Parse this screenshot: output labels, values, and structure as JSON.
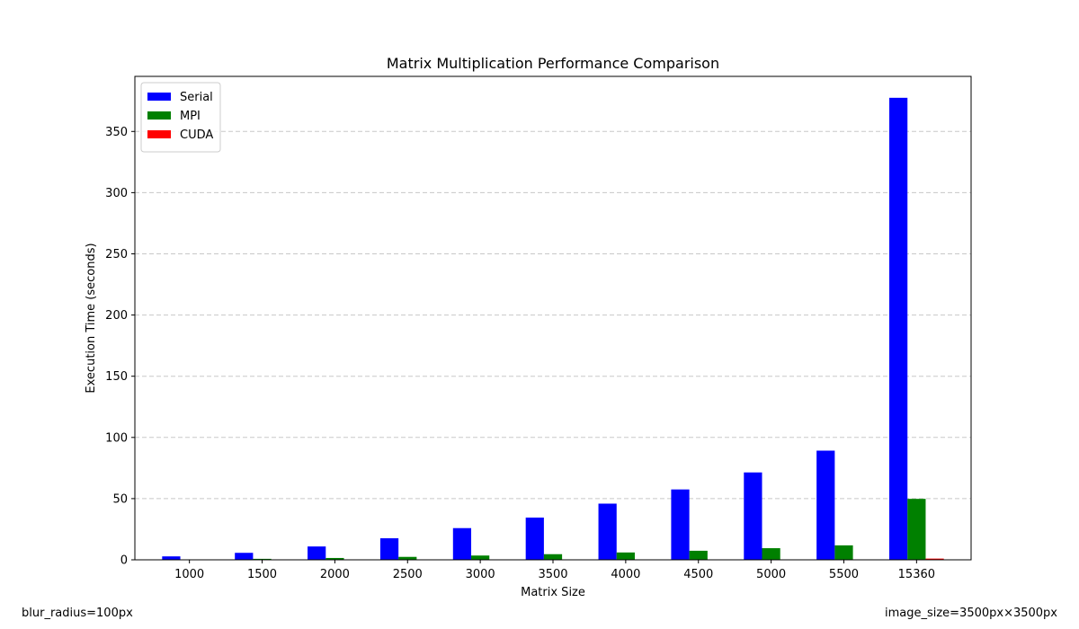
{
  "chart_data": {
    "type": "bar",
    "title": "Matrix Multiplication Performance Comparison",
    "xlabel": "Matrix Size",
    "ylabel": "Execution Time (seconds)",
    "categories": [
      "1000",
      "1500",
      "2000",
      "2500",
      "3000",
      "3500",
      "4000",
      "4500",
      "5000",
      "5500",
      "15360"
    ],
    "ylim": [
      0,
      395
    ],
    "yticks": [
      0,
      50,
      100,
      150,
      200,
      250,
      300,
      350
    ],
    "grid": "horizontal dashed",
    "legend_position": "top-left",
    "series": [
      {
        "name": "Serial",
        "color": "#0000ff",
        "values": [
          2.8,
          5.7,
          10.9,
          17.6,
          25.9,
          34.5,
          45.9,
          57.5,
          71.4,
          89.2,
          377.5
        ]
      },
      {
        "name": "MPI",
        "color": "#008000",
        "values": [
          0.3,
          0.8,
          1.5,
          2.4,
          3.5,
          4.6,
          6.0,
          7.4,
          9.5,
          11.8,
          49.8
        ]
      },
      {
        "name": "CUDA",
        "color": "#ff0000",
        "values": [
          0.05,
          0.08,
          0.1,
          0.12,
          0.15,
          0.18,
          0.2,
          0.25,
          0.3,
          0.35,
          1.0
        ]
      }
    ]
  },
  "notes": {
    "left": "blur_radius=100px",
    "right": "image_size=3500px×3500px"
  }
}
